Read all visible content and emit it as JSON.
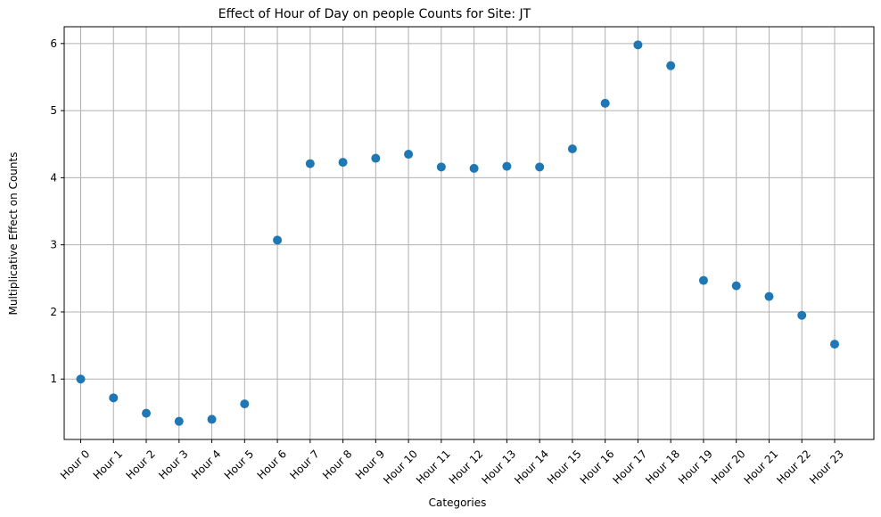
{
  "chart_data": {
    "type": "scatter",
    "title": "Effect of Hour of Day on people Counts for Site: JT",
    "xlabel": "Categories",
    "ylabel": "Multiplicative Effect on Counts",
    "categories": [
      "Hour 0",
      "Hour 1",
      "Hour 2",
      "Hour 3",
      "Hour 4",
      "Hour 5",
      "Hour 6",
      "Hour 7",
      "Hour 8",
      "Hour 9",
      "Hour 10",
      "Hour 11",
      "Hour 12",
      "Hour 13",
      "Hour 14",
      "Hour 15",
      "Hour 16",
      "Hour 17",
      "Hour 18",
      "Hour 19",
      "Hour 20",
      "Hour 21",
      "Hour 22",
      "Hour 23"
    ],
    "values": [
      1.0,
      0.72,
      0.49,
      0.37,
      0.4,
      0.63,
      3.07,
      4.21,
      4.23,
      4.29,
      4.35,
      4.16,
      4.14,
      4.17,
      4.16,
      4.43,
      5.11,
      5.98,
      5.67,
      2.47,
      2.39,
      2.23,
      1.95,
      1.52
    ],
    "ylim": [
      0.1,
      6.25
    ],
    "yticks": [
      1,
      2,
      3,
      4,
      5,
      6
    ],
    "grid": true,
    "marker_color": "#1f77b4"
  }
}
